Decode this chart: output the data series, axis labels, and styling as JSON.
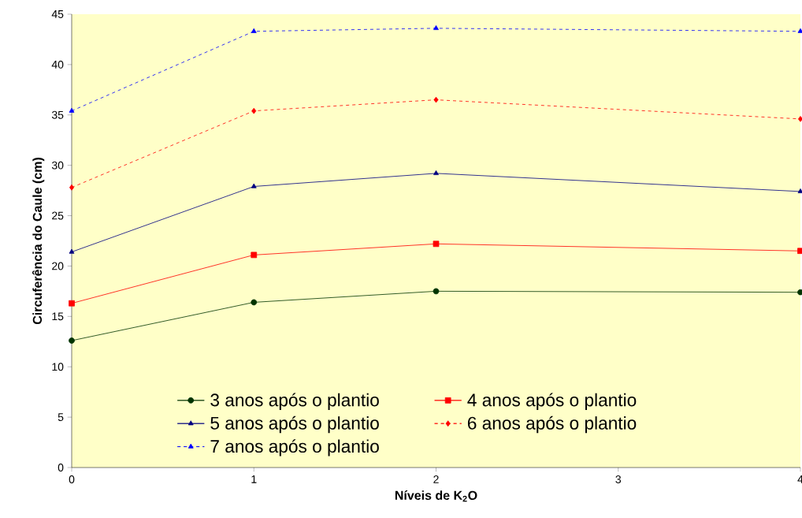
{
  "chart_data": {
    "type": "line",
    "xlabel": "Níveis de K$_{2}$O",
    "ylabel": "Circuferência do Caule (cm)",
    "x": [
      0,
      1,
      2,
      4
    ],
    "xlim": [
      0,
      4
    ],
    "xticks": [
      0,
      1,
      2,
      3,
      4
    ],
    "ylim": [
      0,
      45
    ],
    "yticks": [
      0,
      5,
      10,
      15,
      20,
      25,
      30,
      35,
      40,
      45
    ],
    "grid": false,
    "legend": "bottom",
    "series": [
      {
        "name": "3 anos após o plantio",
        "color": "#003300",
        "marker": "circle",
        "line_style": "solid",
        "values": [
          12.6,
          16.4,
          17.5,
          17.4
        ]
      },
      {
        "name": "4 anos após o plantio",
        "color": "#ff0000",
        "marker": "square",
        "line_style": "solid",
        "values": [
          16.3,
          21.1,
          22.2,
          21.5
        ]
      },
      {
        "name": "5 anos após o plantio",
        "color": "#000080",
        "marker": "triangle",
        "line_style": "solid",
        "values": [
          21.4,
          27.9,
          29.2,
          27.4
        ]
      },
      {
        "name": "6 anos após o plantio",
        "color": "#ff0000",
        "marker": "diamond",
        "line_style": "dashed",
        "values": [
          27.8,
          35.4,
          36.5,
          34.6
        ]
      },
      {
        "name": "7 anos após o plantio",
        "color": "#0000ff",
        "marker": "triangle",
        "line_style": "dashed",
        "values": [
          35.4,
          43.3,
          43.6,
          43.3
        ]
      }
    ]
  }
}
